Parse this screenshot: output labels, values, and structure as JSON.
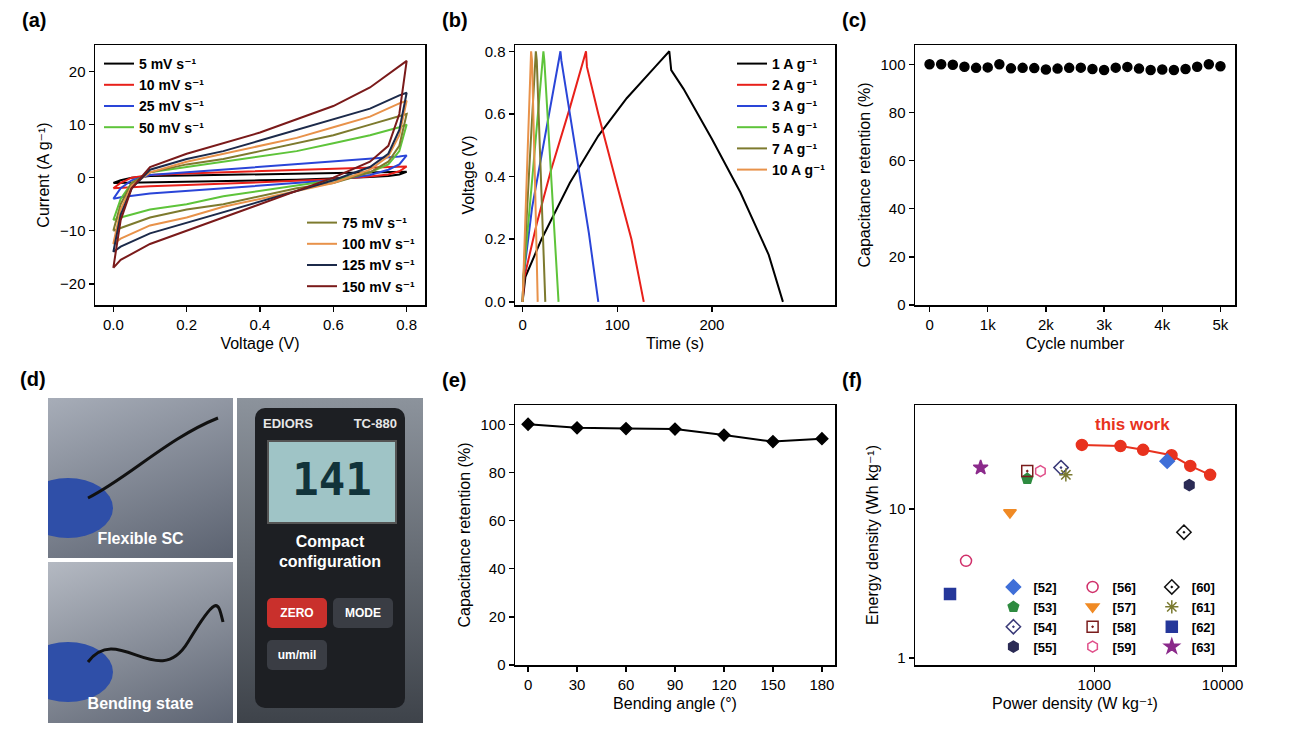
{
  "chart_data": [
    {
      "panel_label": "(a)",
      "type": "line",
      "x_label": "Voltage (V)",
      "y_label": "Current (A g⁻¹)",
      "xlim": [
        -0.05,
        0.85
      ],
      "ylim": [
        -24,
        25
      ],
      "xticks": [
        {
          "value": 0,
          "label": "0.0"
        },
        {
          "value": 0.2,
          "label": "0.2"
        },
        {
          "value": 0.4,
          "label": "0.4"
        },
        {
          "value": 0.6,
          "label": "0.6"
        },
        {
          "value": 0.8,
          "label": "0.8"
        }
      ],
      "yticks": [
        {
          "value": -20,
          "label": "−20"
        },
        {
          "value": -10,
          "label": "−10"
        },
        0,
        10,
        20
      ],
      "grid": false,
      "legend": "upper-left+lower-right",
      "x": [
        0,
        0.02,
        0.05,
        0.1,
        0.2,
        0.3,
        0.4,
        0.5,
        0.6,
        0.7,
        0.78,
        0.8,
        0.8,
        0.78,
        0.75,
        0.7,
        0.6,
        0.5,
        0.4,
        0.3,
        0.2,
        0.1,
        0.02,
        0
      ],
      "series": [
        {
          "name": "5 mV s⁻¹",
          "color": "#000000",
          "values": [
            -1,
            -0.5,
            0,
            0.3,
            0.4,
            0.5,
            0.6,
            0.7,
            0.8,
            0.9,
            1,
            1.1,
            1.1,
            0.6,
            0.3,
            0.1,
            -0.2,
            -0.4,
            -0.5,
            -0.6,
            -0.7,
            -0.8,
            -0.95,
            -1
          ]
        },
        {
          "name": "10 mV s⁻¹",
          "color": "#e8201a",
          "values": [
            -2,
            -1,
            0,
            0.5,
            0.8,
            1,
            1.2,
            1.4,
            1.6,
            1.8,
            2,
            2.1,
            2.1,
            1.2,
            0.6,
            0.2,
            -0.3,
            -0.6,
            -0.9,
            -1.2,
            -1.4,
            -1.6,
            -1.9,
            -2
          ]
        },
        {
          "name": "25 mV s⁻¹",
          "color": "#2a45d8",
          "values": [
            -4,
            -2,
            -0.5,
            0.5,
            1,
            1.5,
            2,
            2.5,
            3,
            3.5,
            4,
            4.2,
            4.2,
            2.5,
            1.5,
            0.5,
            -0.5,
            -1,
            -1.5,
            -2,
            -2.5,
            -3,
            -3.7,
            -4
          ]
        },
        {
          "name": "50 mV s⁻¹",
          "color": "#5ec43a",
          "values": [
            -8,
            -4,
            -1,
            1,
            2,
            3,
            4,
            5,
            6.5,
            8,
            9.5,
            10,
            10,
            5,
            2.5,
            1,
            -0.5,
            -1.5,
            -2.5,
            -3.5,
            -5,
            -6,
            -7.5,
            -8
          ]
        },
        {
          "name": "75 mV s⁻¹",
          "color": "#7d7a2e",
          "values": [
            -10,
            -5,
            -1,
            1,
            2.5,
            3.5,
            5,
            6.5,
            8,
            10,
            11.5,
            12,
            12,
            6,
            3,
            1,
            -1,
            -2,
            -3.5,
            -5,
            -6,
            -7.5,
            -9.5,
            -10
          ]
        },
        {
          "name": "100 mV s⁻¹",
          "color": "#e8924a",
          "values": [
            -12.5,
            -6,
            -1.5,
            1,
            3,
            4.5,
            6,
            7.5,
            9.5,
            11.5,
            14,
            14.5,
            14.5,
            8,
            4,
            1.5,
            -1,
            -2.5,
            -4,
            -5.5,
            -7.5,
            -9,
            -11.5,
            -12.5
          ]
        },
        {
          "name": "125 mV s⁻¹",
          "color": "#1c2a4a",
          "values": [
            -14,
            -7,
            -2,
            1.5,
            3.5,
            5,
            7,
            9,
            11,
            13,
            15.5,
            16,
            16,
            9,
            4.5,
            2,
            -0.5,
            -2.5,
            -4.5,
            -6.5,
            -8.5,
            -10.5,
            -13,
            -14
          ]
        },
        {
          "name": "150 mV s⁻¹",
          "color": "#7a1a1a",
          "values": [
            -17,
            -8,
            -2,
            2,
            4.5,
            6.5,
            8.5,
            11,
            13.5,
            17,
            21,
            22,
            22,
            12,
            6,
            3,
            0,
            -2.5,
            -5,
            -7.5,
            -10,
            -12.5,
            -15.5,
            -17
          ]
        }
      ]
    },
    {
      "panel_label": "(b)",
      "type": "line",
      "x_label": "Time (s)",
      "y_label": "Voltage (V)",
      "xlim": [
        -8,
        330
      ],
      "ylim": [
        -0.01,
        0.82
      ],
      "xticks": [
        0,
        100,
        200
      ],
      "yticks": [
        {
          "value": 0,
          "label": "0.0"
        },
        {
          "value": 0.2,
          "label": "0.2"
        },
        {
          "value": 0.4,
          "label": "0.4"
        },
        {
          "value": 0.6,
          "label": "0.6"
        },
        {
          "value": 0.8,
          "label": "0.8"
        }
      ],
      "grid": false,
      "legend": "upper-right",
      "series": [
        {
          "name": "1 A g⁻¹",
          "color": "#000000",
          "x": [
            0,
            3,
            20,
            50,
            80,
            110,
            140,
            155,
            157,
            170,
            200,
            230,
            260,
            275
          ],
          "values": [
            0,
            0.08,
            0.2,
            0.38,
            0.53,
            0.65,
            0.75,
            0.8,
            0.74,
            0.68,
            0.52,
            0.35,
            0.15,
            0
          ]
        },
        {
          "name": "2 A g⁻¹",
          "color": "#e8201a",
          "x": [
            0,
            2,
            15,
            30,
            50,
            67,
            68,
            80,
            100,
            115,
            128
          ],
          "values": [
            0,
            0.08,
            0.25,
            0.42,
            0.62,
            0.8,
            0.75,
            0.6,
            0.37,
            0.2,
            0
          ]
        },
        {
          "name": "3 A g⁻¹",
          "color": "#2a45d8",
          "x": [
            0,
            1,
            10,
            25,
            40,
            41,
            55,
            70,
            80
          ],
          "values": [
            0,
            0.08,
            0.3,
            0.55,
            0.8,
            0.77,
            0.5,
            0.22,
            0
          ]
        },
        {
          "name": "5 A g⁻¹",
          "color": "#5ec43a",
          "x": [
            0,
            1,
            11,
            22,
            23,
            30,
            38
          ],
          "values": [
            0,
            0.08,
            0.42,
            0.8,
            0.77,
            0.4,
            0
          ]
        },
        {
          "name": "7 A g⁻¹",
          "color": "#7d7a2e",
          "x": [
            0,
            1,
            7,
            14,
            15,
            19,
            24
          ],
          "values": [
            0,
            0.08,
            0.42,
            0.8,
            0.77,
            0.4,
            0
          ]
        },
        {
          "name": "10 A g⁻¹",
          "color": "#e8924a",
          "x": [
            0,
            1,
            5,
            9,
            10,
            13,
            16
          ],
          "values": [
            0,
            0.08,
            0.45,
            0.8,
            0.77,
            0.4,
            0
          ]
        }
      ]
    },
    {
      "panel_label": "(c)",
      "type": "scatter",
      "x_label": "Cycle number",
      "y_label": "Capacitance retention (%)",
      "xlim": [
        -250,
        5250
      ],
      "ylim": [
        0,
        108
      ],
      "xticks": [
        0,
        {
          "value": 1000,
          "label": "1k"
        },
        {
          "value": 2000,
          "label": "2k"
        },
        {
          "value": 3000,
          "label": "3k"
        },
        {
          "value": 4000,
          "label": "4k"
        },
        {
          "value": 5000,
          "label": "5k"
        }
      ],
      "yticks": [
        0,
        20,
        40,
        60,
        80,
        100
      ],
      "grid": false,
      "series": [
        {
          "color": "#000000",
          "marker": "circle",
          "x": [
            0,
            200,
            400,
            600,
            800,
            1000,
            1200,
            1400,
            1600,
            1800,
            2000,
            2200,
            2400,
            2600,
            2800,
            3000,
            3200,
            3400,
            3600,
            3800,
            4000,
            4200,
            4400,
            4600,
            4800,
            5000
          ],
          "values": [
            100,
            100,
            99.8,
            99,
            98.5,
            98.7,
            100,
            98.3,
            98.5,
            98.4,
            97.8,
            98.2,
            98.5,
            98.6,
            98,
            97.6,
            98.6,
            98.9,
            98.2,
            97.6,
            97.8,
            97.6,
            98,
            99,
            100,
            99.2
          ]
        }
      ]
    },
    {
      "panel_label": "(e)",
      "type": "line",
      "x_label": "Bending angle (°)",
      "y_label": "Capacitance retention (%)",
      "xlim": [
        -8,
        188
      ],
      "ylim": [
        0,
        108
      ],
      "xticks": [
        0,
        30,
        60,
        90,
        120,
        150,
        180
      ],
      "yticks": [
        0,
        20,
        40,
        60,
        80,
        100
      ],
      "grid": false,
      "series": [
        {
          "color": "#000000",
          "marker": "diamond",
          "line_style": "solid",
          "x": [
            0,
            30,
            60,
            90,
            120,
            150,
            180
          ],
          "values": [
            100,
            98.5,
            98.2,
            98,
            95.5,
            92.8,
            94
          ]
        }
      ]
    },
    {
      "panel_label": "(f)",
      "type": "scatter",
      "x_label": "Power density (W kg⁻¹)",
      "y_label": "Energy density (Wh kg⁻¹)",
      "log": true,
      "xlim": [
        40,
        12500
      ],
      "ylim": [
        0.9,
        50
      ],
      "xticks": [
        1000,
        10000
      ],
      "yticks": [
        1,
        10
      ],
      "grid": false,
      "legend": "lower-right",
      "annotations": [
        {
          "text": "this work",
          "x": 2000,
          "y": 37,
          "color": "#e8321e"
        }
      ],
      "series": [
        {
          "type": "line",
          "color": "#e8321e",
          "marker": "circle",
          "x": [
            800,
            1600,
            2400,
            4000,
            5600,
            8000
          ],
          "values": [
            27,
            26.5,
            25,
            23,
            19.5,
            17
          ]
        },
        {
          "name": "[52]",
          "color": "#3f6fd8",
          "marker": "diamond",
          "x": [
            3700
          ],
          "values": [
            21
          ]
        },
        {
          "name": "[53]",
          "color": "#2e8b40",
          "marker": "pentagon",
          "x": [
            300
          ],
          "values": [
            16
          ]
        },
        {
          "name": "[54]",
          "color": "#3a3a78",
          "marker": "diamond-open-dot",
          "x": [
            550
          ],
          "values": [
            19
          ]
        },
        {
          "name": "[55]",
          "color": "#2b2b55",
          "marker": "hexagon",
          "x": [
            5500
          ],
          "values": [
            14.5
          ]
        },
        {
          "name": "[56]",
          "color": "#d0306a",
          "marker": "circle-open",
          "x": [
            100
          ],
          "values": [
            4.5
          ]
        },
        {
          "name": "[57]",
          "color": "#f08a24",
          "marker": "triangle-down",
          "x": [
            220
          ],
          "values": [
            9.5
          ]
        },
        {
          "name": "[58]",
          "color": "#7a1c1c",
          "marker": "square-open-dot",
          "x": [
            300
          ],
          "values": [
            18
          ]
        },
        {
          "name": "[59]",
          "color": "#e0508a",
          "marker": "hexagon-open",
          "x": [
            380
          ],
          "values": [
            18
          ]
        },
        {
          "name": "[60]",
          "color": "#111111",
          "marker": "diamond-open-dot",
          "x": [
            5000
          ],
          "values": [
            7
          ]
        },
        {
          "name": "[61]",
          "color": "#7a7a30",
          "marker": "asterisk-open",
          "x": [
            600
          ],
          "values": [
            17
          ]
        },
        {
          "name": "[62]",
          "color": "#25379a",
          "marker": "square",
          "x": [
            75
          ],
          "values": [
            2.7
          ]
        },
        {
          "name": "[63]",
          "color": "#8b2a8b",
          "marker": "star",
          "x": [
            130
          ],
          "values": [
            19
          ]
        }
      ]
    }
  ],
  "photo": {
    "panel_label": "(d)",
    "labels": {
      "top": "Flexible SC",
      "bottom": "Bending state",
      "right": "Compact configuration"
    },
    "device": {
      "brand": "EDIORS",
      "model": "TC-880",
      "reading": "141",
      "buttons": [
        "ZERO",
        "MODE",
        "um/mil"
      ]
    }
  }
}
